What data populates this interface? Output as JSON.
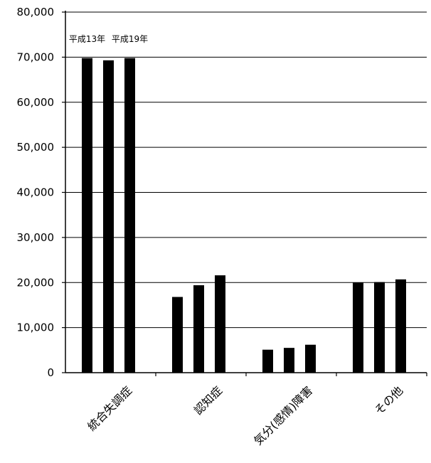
{
  "chart_data": {
    "type": "bar",
    "categories": [
      "統合失調症",
      "認知症",
      "気分(感情)障害",
      "その他"
    ],
    "series": [
      {
        "values": [
          69800,
          16800,
          5100,
          20000
        ]
      },
      {
        "values": [
          69300,
          19400,
          5500,
          20100
        ]
      },
      {
        "values": [
          69800,
          21600,
          6200,
          20700
        ]
      }
    ],
    "annotations": [
      "平成13年",
      "平成19年"
    ],
    "ylim": [
      0,
      80000
    ],
    "yticks": [
      0,
      10000,
      20000,
      30000,
      40000,
      50000,
      60000,
      70000,
      80000
    ],
    "ytick_labels": [
      "0",
      "10,000",
      "20,000",
      "30,000",
      "40,000",
      "50,000",
      "60,000",
      "70,000",
      "80,000"
    ],
    "grid": true,
    "legend": "none",
    "colors": {
      "bar": "#000000",
      "grid": "#000000",
      "axis": "#000000"
    }
  }
}
